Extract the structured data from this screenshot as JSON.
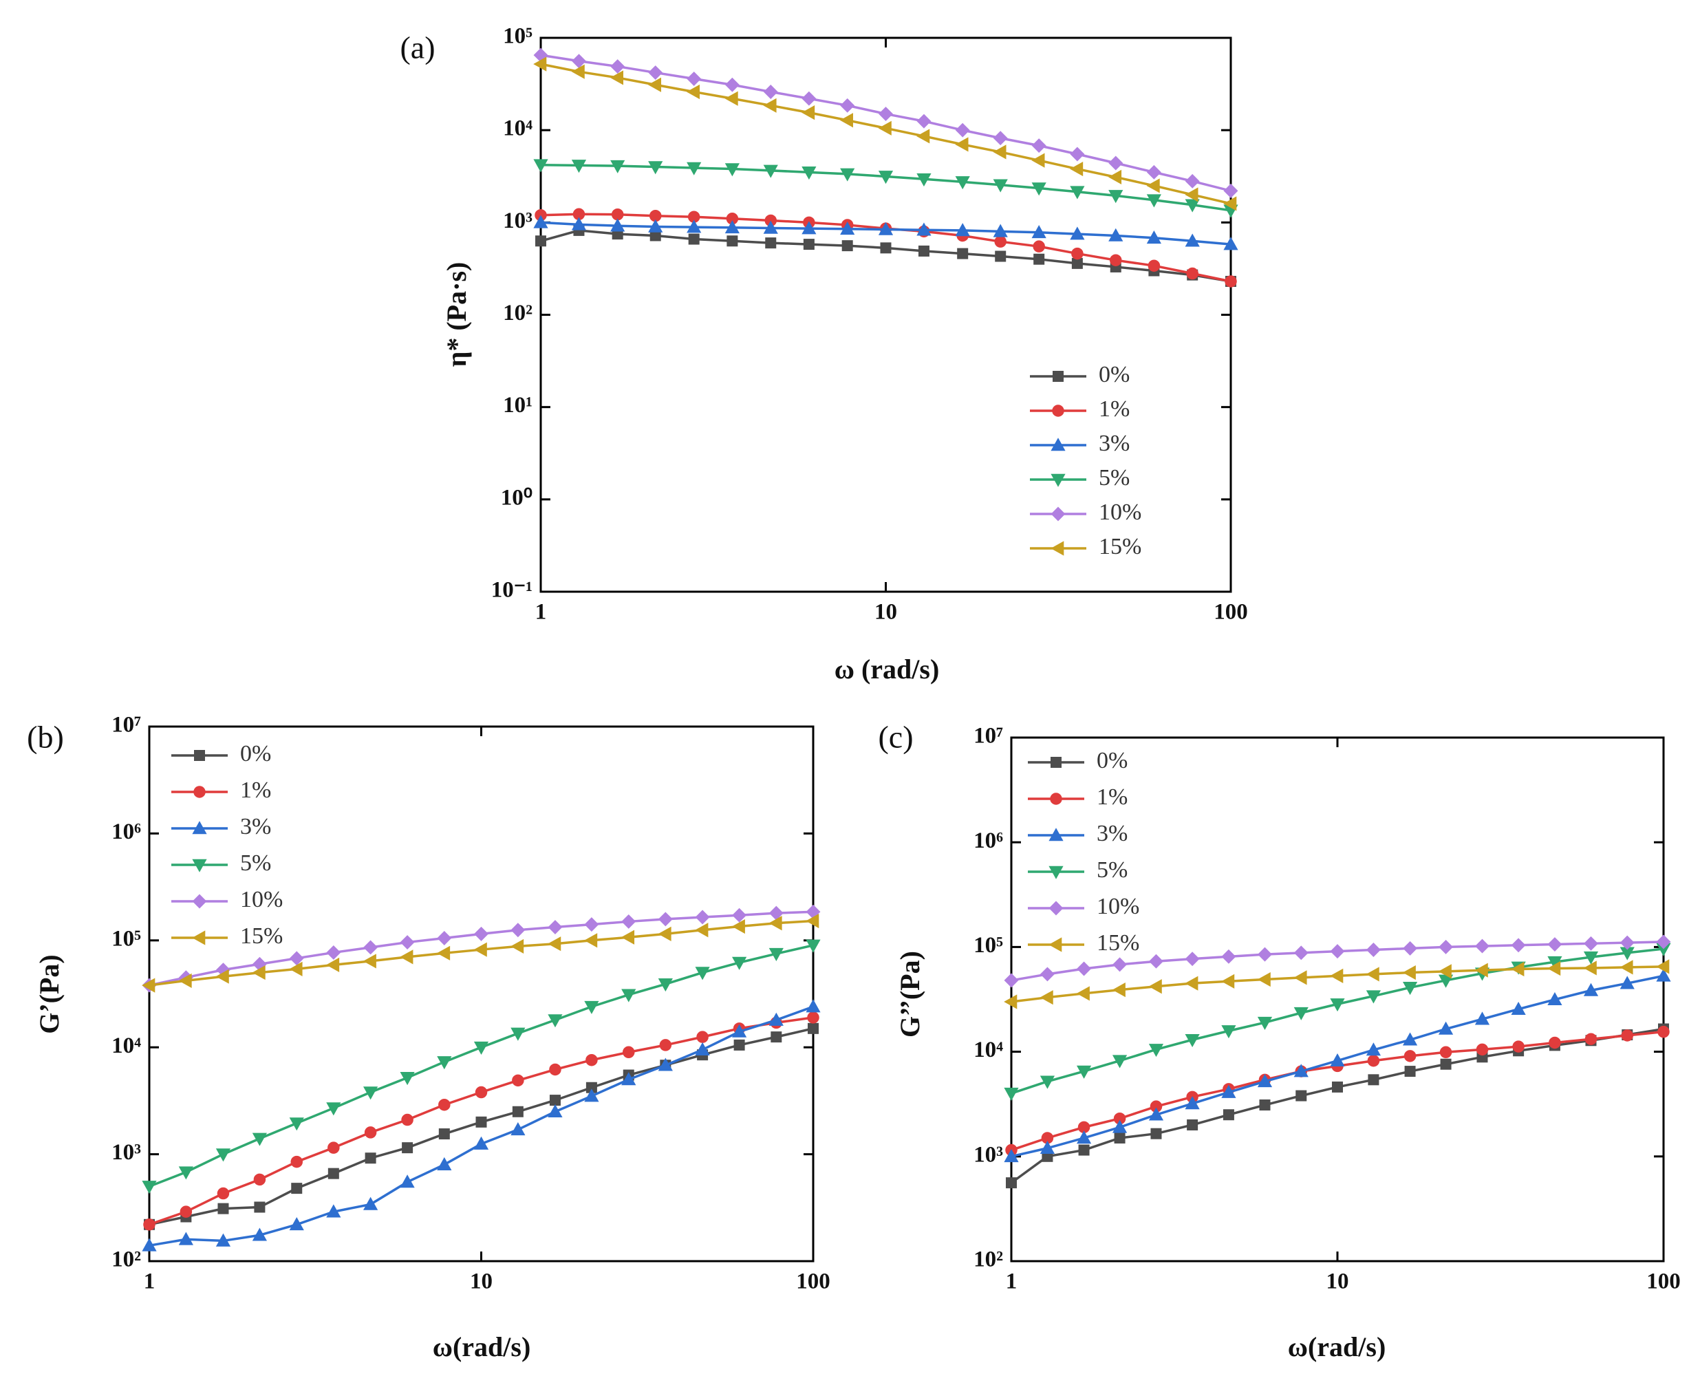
{
  "chart_data": [
    {
      "type": "line",
      "panel_label": "(a)",
      "x_label": "ω (rad/s)",
      "y_label": "η* (Pa·s)",
      "log_x": true,
      "log_y": true,
      "legend": "lower right",
      "xlim": [
        1,
        100
      ],
      "ylim": [
        0.1,
        100000
      ],
      "xticks": [
        1,
        10,
        100
      ],
      "yticks": [
        {
          "value": 0.1,
          "label": "10⁻¹"
        },
        {
          "value": 1,
          "label": "10⁰"
        },
        {
          "value": 10,
          "label": "10¹"
        },
        {
          "value": 100,
          "label": "10²"
        },
        {
          "value": 1000,
          "label": "10³"
        },
        {
          "value": 10000,
          "label": "10⁴"
        },
        {
          "value": 100000,
          "label": "10⁵"
        }
      ],
      "x": [
        1,
        1.29,
        1.67,
        2.15,
        2.78,
        3.59,
        4.64,
        5.99,
        7.74,
        10,
        12.9,
        16.7,
        21.5,
        27.8,
        35.9,
        46.4,
        59.9,
        77.4,
        100
      ],
      "series": [
        {
          "name": "0%",
          "color": "#4d4d4d",
          "marker": "square",
          "values": [
            630,
            820,
            750,
            720,
            660,
            630,
            600,
            580,
            560,
            530,
            490,
            460,
            430,
            400,
            360,
            330,
            300,
            270,
            230
          ]
        },
        {
          "name": "1%",
          "color": "#e03c3c",
          "marker": "circle",
          "values": [
            1200,
            1230,
            1220,
            1180,
            1150,
            1100,
            1050,
            1000,
            940,
            860,
            800,
            720,
            620,
            550,
            460,
            390,
            340,
            280,
            230
          ]
        },
        {
          "name": "3%",
          "color": "#2e6fd0",
          "marker": "triangle-up",
          "values": [
            1000,
            950,
            920,
            900,
            890,
            880,
            870,
            860,
            850,
            840,
            830,
            820,
            800,
            780,
            750,
            720,
            680,
            630,
            580
          ]
        },
        {
          "name": "5%",
          "color": "#2fa870",
          "marker": "triangle-down",
          "values": [
            4200,
            4150,
            4100,
            4000,
            3900,
            3800,
            3650,
            3500,
            3350,
            3150,
            2950,
            2750,
            2550,
            2350,
            2150,
            1950,
            1750,
            1550,
            1350
          ]
        },
        {
          "name": "10%",
          "color": "#b07fe0",
          "marker": "diamond",
          "values": [
            65000,
            56000,
            49000,
            42000,
            36000,
            31000,
            26000,
            22000,
            18500,
            15000,
            12500,
            10000,
            8200,
            6800,
            5500,
            4400,
            3500,
            2800,
            2200
          ]
        },
        {
          "name": "15%",
          "color": "#c9a020",
          "marker": "triangle-left",
          "values": [
            52000,
            43000,
            37000,
            31000,
            26000,
            22000,
            18500,
            15500,
            12800,
            10500,
            8600,
            7000,
            5800,
            4700,
            3800,
            3100,
            2500,
            2000,
            1600
          ]
        }
      ]
    },
    {
      "type": "line",
      "panel_label": "(b)",
      "x_label": "ω(rad/s)",
      "y_label": "G’(Pa)",
      "log_x": true,
      "log_y": true,
      "legend": "upper left",
      "xlim": [
        1,
        100
      ],
      "ylim": [
        100,
        10000000
      ],
      "xticks": [
        1,
        10,
        100
      ],
      "yticks": [
        {
          "value": 100,
          "label": "10²"
        },
        {
          "value": 1000,
          "label": "10³"
        },
        {
          "value": 10000,
          "label": "10⁴"
        },
        {
          "value": 100000,
          "label": "10⁵"
        },
        {
          "value": 1000000,
          "label": "10⁶"
        },
        {
          "value": 10000000,
          "label": "10⁷"
        }
      ],
      "x": [
        1,
        1.29,
        1.67,
        2.15,
        2.78,
        3.59,
        4.64,
        5.99,
        7.74,
        10,
        12.9,
        16.7,
        21.5,
        27.8,
        35.9,
        46.4,
        59.9,
        77.4,
        100
      ],
      "series": [
        {
          "name": "0%",
          "color": "#4d4d4d",
          "marker": "square",
          "values": [
            220,
            260,
            310,
            320,
            480,
            660,
            920,
            1150,
            1550,
            2000,
            2500,
            3200,
            4200,
            5500,
            6800,
            8500,
            10500,
            12500,
            15000
          ]
        },
        {
          "name": "1%",
          "color": "#e03c3c",
          "marker": "circle",
          "values": [
            220,
            290,
            430,
            580,
            850,
            1150,
            1600,
            2100,
            2900,
            3800,
            4900,
            6200,
            7600,
            9000,
            10500,
            12500,
            15000,
            17000,
            19000
          ]
        },
        {
          "name": "3%",
          "color": "#2e6fd0",
          "marker": "triangle-up",
          "values": [
            140,
            160,
            155,
            175,
            220,
            290,
            340,
            550,
            800,
            1250,
            1700,
            2500,
            3500,
            5000,
            6800,
            9500,
            14000,
            18000,
            24000
          ]
        },
        {
          "name": "5%",
          "color": "#2fa870",
          "marker": "triangle-down",
          "values": [
            500,
            680,
            1000,
            1400,
            1950,
            2700,
            3800,
            5200,
            7300,
            10000,
            13500,
            18000,
            24000,
            31000,
            39000,
            50000,
            62000,
            75000,
            90000
          ]
        },
        {
          "name": "10%",
          "color": "#b07fe0",
          "marker": "diamond",
          "values": [
            38000,
            45000,
            53000,
            60000,
            68000,
            77000,
            86000,
            96000,
            105000,
            115000,
            125000,
            133000,
            141000,
            150000,
            158000,
            165000,
            172000,
            180000,
            185000
          ]
        },
        {
          "name": "15%",
          "color": "#c9a020",
          "marker": "triangle-left",
          "values": [
            38000,
            42000,
            46000,
            50000,
            54000,
            59000,
            64000,
            70000,
            76000,
            82000,
            88000,
            93000,
            100000,
            107000,
            115000,
            125000,
            135000,
            145000,
            152000
          ]
        }
      ]
    },
    {
      "type": "line",
      "panel_label": "(c)",
      "x_label": "ω(rad/s)",
      "y_label": "G’’(Pa)",
      "log_x": true,
      "log_y": true,
      "legend": "upper left",
      "xlim": [
        1,
        100
      ],
      "ylim": [
        100,
        10000000
      ],
      "xticks": [
        1,
        10,
        100
      ],
      "yticks": [
        {
          "value": 100,
          "label": "10²"
        },
        {
          "value": 1000,
          "label": "10³"
        },
        {
          "value": 10000,
          "label": "10⁴"
        },
        {
          "value": 100000,
          "label": "10⁵"
        },
        {
          "value": 1000000,
          "label": "10⁶"
        },
        {
          "value": 10000000,
          "label": "10⁷"
        }
      ],
      "x": [
        1,
        1.29,
        1.67,
        2.15,
        2.78,
        3.59,
        4.64,
        5.99,
        7.74,
        10,
        12.9,
        16.7,
        21.5,
        27.8,
        35.9,
        46.4,
        59.9,
        77.4,
        100
      ],
      "series": [
        {
          "name": "0%",
          "color": "#4d4d4d",
          "marker": "square",
          "values": [
            560,
            1000,
            1150,
            1500,
            1650,
            2000,
            2500,
            3100,
            3800,
            4600,
            5400,
            6500,
            7600,
            8900,
            10200,
            11500,
            12800,
            14500,
            16500
          ]
        },
        {
          "name": "1%",
          "color": "#e03c3c",
          "marker": "circle",
          "values": [
            1150,
            1500,
            1900,
            2300,
            3000,
            3700,
            4400,
            5400,
            6500,
            7300,
            8200,
            9100,
            9900,
            10500,
            11200,
            12200,
            13200,
            14300,
            15500
          ]
        },
        {
          "name": "3%",
          "color": "#2e6fd0",
          "marker": "triangle-up",
          "values": [
            1000,
            1200,
            1500,
            1900,
            2500,
            3200,
            4100,
            5200,
            6500,
            8200,
            10400,
            13000,
            16500,
            20500,
            25500,
            31500,
            38500,
            45000,
            53000
          ]
        },
        {
          "name": "5%",
          "color": "#2fa870",
          "marker": "triangle-down",
          "values": [
            4000,
            5200,
            6500,
            8200,
            10500,
            13000,
            15800,
            19000,
            23500,
            28500,
            34000,
            41000,
            48000,
            56000,
            64000,
            72000,
            80000,
            88000,
            96000
          ]
        },
        {
          "name": "10%",
          "color": "#b07fe0",
          "marker": "diamond",
          "values": [
            48000,
            55000,
            62000,
            68000,
            73000,
            77000,
            81000,
            85000,
            88000,
            91000,
            94000,
            97000,
            100000,
            102000,
            104000,
            106000,
            108000,
            110000,
            112000
          ]
        },
        {
          "name": "15%",
          "color": "#c9a020",
          "marker": "triangle-left",
          "values": [
            30000,
            33000,
            36000,
            39000,
            42000,
            45000,
            47000,
            49000,
            51000,
            53000,
            55000,
            57000,
            58500,
            60000,
            61500,
            62500,
            63000,
            64000,
            65000
          ]
        }
      ]
    }
  ]
}
